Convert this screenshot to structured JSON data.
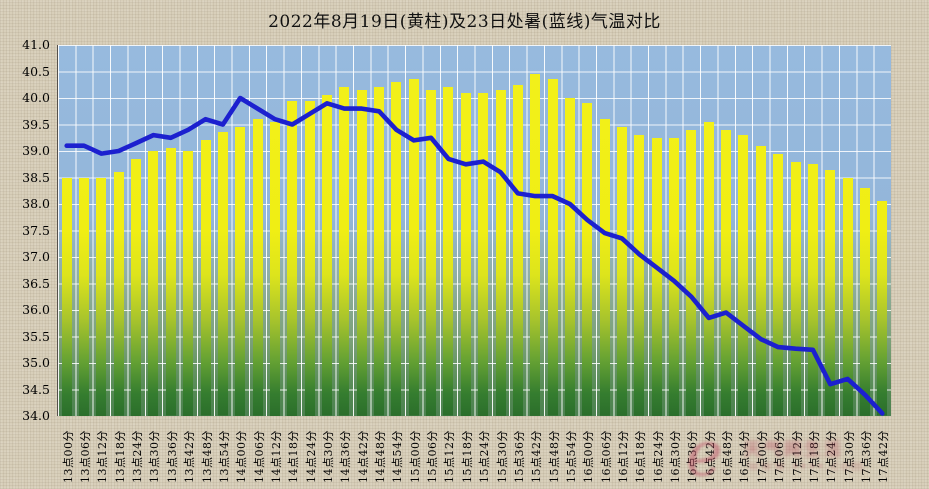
{
  "title": "2022年8月19日(黄柱)及23日处暑(蓝线)气温对比",
  "y_axis": {
    "labels": [
      "41.0",
      "40.5",
      "40.0",
      "39.5",
      "39.0",
      "38.5",
      "38.0",
      "37.5",
      "37.0",
      "36.5",
      "36.0",
      "35.5",
      "35.0",
      "34.5",
      "34.0"
    ],
    "max": 41.0,
    "min": 34.0,
    "step": 0.5
  },
  "chart_data": {
    "type": "bar",
    "title": "2022年8月19日(黄柱)及23日处暑(蓝线)气温对比",
    "xlabel": "",
    "ylabel": "",
    "ylim": [
      34.0,
      41.0
    ],
    "grid": true,
    "legend_position": "none",
    "categories": [
      "13点00分",
      "13点06分",
      "13点12分",
      "13点18分",
      "13点24分",
      "13点30分",
      "13点36分",
      "13点42分",
      "13点48分",
      "13点54分",
      "14点00分",
      "14点06分",
      "14点12分",
      "14点18分",
      "14点24分",
      "14点30分",
      "14点36分",
      "14点42分",
      "14点48分",
      "14点54分",
      "15点00分",
      "15点06分",
      "15点12分",
      "15点18分",
      "15点24分",
      "15点30分",
      "15点36分",
      "15点42分",
      "15点48分",
      "15点54分",
      "16点00分",
      "16点06分",
      "16点12分",
      "16点18分",
      "16点24分",
      "16点30分",
      "16点36分",
      "16点42分",
      "16点48分",
      "16点54分",
      "17点00分",
      "17点06分",
      "17点12分",
      "17点18分",
      "17点24分",
      "17点30分",
      "17点36分",
      "17点42分"
    ],
    "series": [
      {
        "name": "8月19日(黄柱)",
        "type": "bar",
        "color": "#f0ee14",
        "values": [
          38.5,
          38.5,
          38.5,
          38.6,
          38.85,
          39.0,
          39.05,
          39.0,
          39.2,
          39.35,
          39.45,
          39.6,
          39.55,
          39.95,
          39.95,
          40.05,
          40.2,
          40.15,
          40.2,
          40.3,
          40.35,
          40.15,
          40.2,
          40.1,
          40.1,
          40.15,
          40.25,
          40.45,
          40.35,
          40.0,
          39.9,
          39.6,
          39.45,
          39.3,
          39.25,
          39.25,
          39.4,
          39.55,
          39.4,
          39.3,
          39.1,
          38.95,
          38.8,
          38.75,
          38.65,
          38.5,
          38.3,
          38.05
        ]
      },
      {
        "name": "23日处暑(蓝线)",
        "type": "line",
        "color": "#1c20cf",
        "values": [
          39.1,
          39.1,
          38.95,
          39.0,
          39.15,
          39.3,
          39.25,
          39.4,
          39.6,
          39.5,
          40.0,
          39.8,
          39.6,
          39.5,
          39.7,
          39.9,
          39.8,
          39.8,
          39.75,
          39.4,
          39.2,
          39.25,
          38.85,
          38.75,
          38.8,
          38.6,
          38.2,
          38.15,
          38.15,
          38.0,
          37.7,
          37.45,
          37.35,
          37.05,
          36.8,
          36.55,
          36.25,
          35.85,
          35.95,
          35.7,
          35.45,
          35.3,
          35.27,
          35.25,
          34.6,
          34.7,
          34.4,
          34.05
        ]
      }
    ]
  },
  "colors": {
    "plot_bg_top": "#93b6da",
    "plot_bg_bottom": "#4c8150",
    "bar_top": "#f0ee14",
    "bar_bottom": "#2b6e2b",
    "line": "#1c20cf",
    "gridline": "#ffffff",
    "page_bg": "#d8cfba",
    "text": "#111111"
  },
  "watermark": {
    "logo": "e",
    "text": "天气网生活",
    "url": "www.∙∙∙∙.com"
  }
}
